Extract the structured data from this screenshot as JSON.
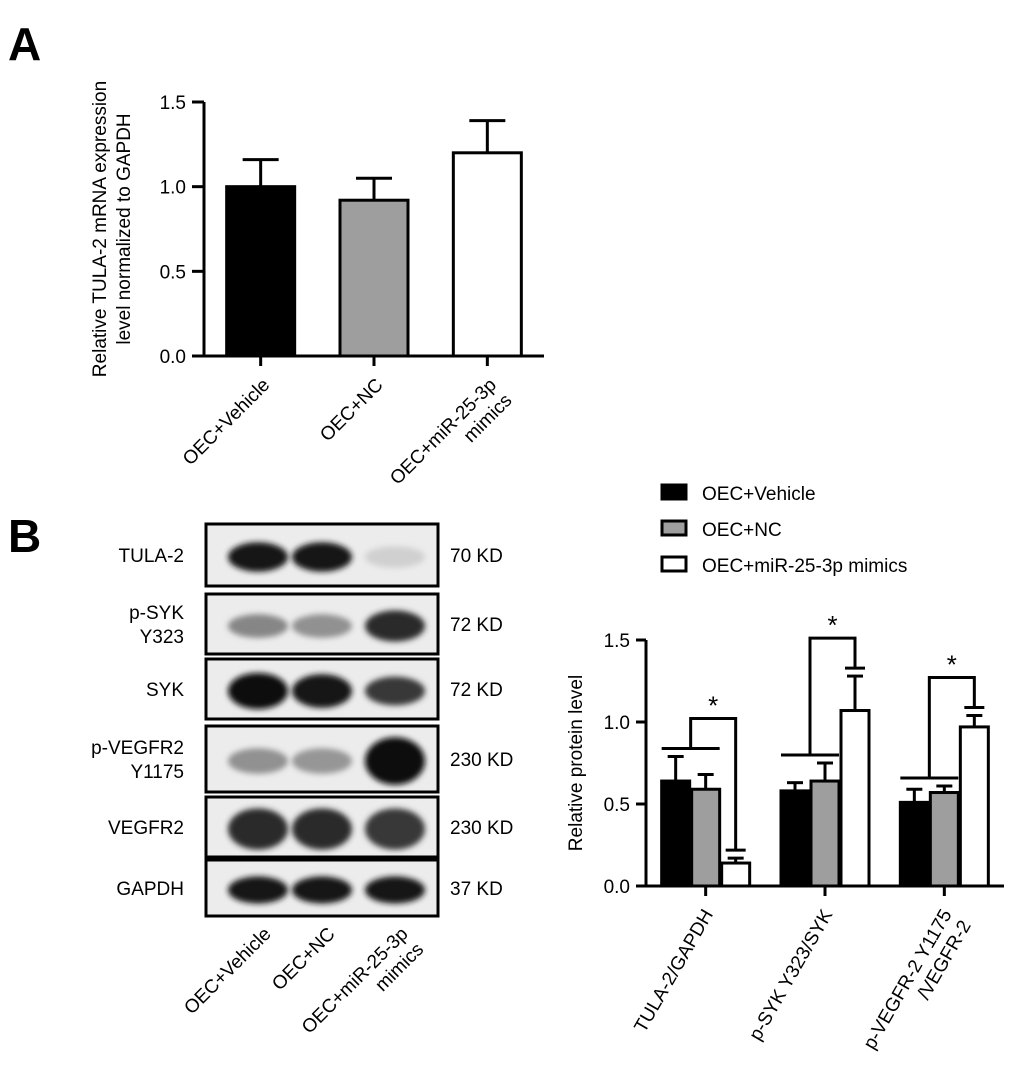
{
  "panels": {
    "a": "A",
    "b": "B"
  },
  "colors": {
    "vehicle": "#000000",
    "nc": "#9e9e9e",
    "mimics": "#ffffff",
    "stroke": "#000000"
  },
  "chart_data": [
    {
      "id": "A",
      "type": "bar",
      "ylabel_lines": [
        "Relative TULA-2 mRNA expression",
        "level normalized to GAPDH"
      ],
      "ylim": [
        0,
        1.5
      ],
      "yticks": [
        0.0,
        0.5,
        1.0,
        1.5
      ],
      "ytick_labels": [
        "0.0",
        "0.5",
        "1.0",
        "1.5"
      ],
      "categories": [
        {
          "lines": [
            "OEC+Vehicle"
          ]
        },
        {
          "lines": [
            "OEC+NC"
          ]
        },
        {
          "lines": [
            "OEC+miR-25-3p",
            "mimics"
          ]
        }
      ],
      "values": [
        1.0,
        0.92,
        1.2
      ],
      "errors": [
        0.16,
        0.13,
        0.19
      ]
    },
    {
      "id": "B-western",
      "type": "table",
      "bands": [
        {
          "label_lines": [
            "TULA-2"
          ],
          "size": "70 KD",
          "intensity": [
            0.95,
            0.95,
            0.12
          ],
          "thickness": [
            0.45,
            0.45,
            0.3
          ]
        },
        {
          "label_lines": [
            "p-SYK",
            "Y323"
          ],
          "size": "72 KD",
          "intensity": [
            0.45,
            0.4,
            0.85
          ],
          "thickness": [
            0.35,
            0.35,
            0.5
          ]
        },
        {
          "label_lines": [
            "SYK"
          ],
          "size": "72 KD",
          "intensity": [
            1.0,
            0.95,
            0.8
          ],
          "thickness": [
            0.6,
            0.55,
            0.45
          ]
        },
        {
          "label_lines": [
            "p-VEGFR2",
            "Y1175"
          ],
          "size": "230 KD",
          "intensity": [
            0.4,
            0.38,
            1.0
          ],
          "thickness": [
            0.35,
            0.35,
            0.75
          ]
        },
        {
          "label_lines": [
            "VEGFR2"
          ],
          "size": "230 KD",
          "intensity": [
            0.85,
            0.85,
            0.8
          ],
          "thickness": [
            0.7,
            0.7,
            0.7
          ]
        },
        {
          "label_lines": [
            "GAPDH"
          ],
          "size": "37 KD",
          "intensity": [
            0.95,
            0.95,
            0.95
          ],
          "thickness": [
            0.45,
            0.45,
            0.45
          ]
        }
      ],
      "lane_labels": [
        {
          "lines": [
            "OEC+Vehicle"
          ]
        },
        {
          "lines": [
            "OEC+NC"
          ]
        },
        {
          "lines": [
            "OEC+miR-25-3p",
            "mimics"
          ]
        }
      ]
    },
    {
      "id": "B",
      "type": "bar",
      "ylabel": "Relative protein level",
      "ylim": [
        0,
        1.5
      ],
      "yticks": [
        0.0,
        0.5,
        1.0,
        1.5
      ],
      "ytick_labels": [
        "0.0",
        "0.5",
        "1.0",
        "1.5"
      ],
      "legend": [
        "OEC+Vehicle",
        "OEC+NC",
        "OEC+miR-25-3p mimics"
      ],
      "legend_position": "top",
      "categories": [
        {
          "lines": [
            "TULA-2/GAPDH"
          ]
        },
        {
          "lines": [
            "p-SYK Y323/SYK"
          ]
        },
        {
          "lines": [
            "p-VEGFR-2 Y1175",
            "/VEGFR-2"
          ]
        }
      ],
      "series": [
        {
          "name": "OEC+Vehicle",
          "values": [
            0.64,
            0.58,
            0.51
          ],
          "errors": [
            0.15,
            0.05,
            0.08
          ]
        },
        {
          "name": "OEC+NC",
          "values": [
            0.59,
            0.64,
            0.57
          ],
          "errors": [
            0.09,
            0.11,
            0.04
          ]
        },
        {
          "name": "OEC+miR-25-3p mimics",
          "values": [
            0.14,
            1.07,
            0.97
          ],
          "errors": [
            0.03,
            0.21,
            0.07
          ]
        }
      ],
      "significance": [
        "*",
        "*",
        "*"
      ]
    }
  ]
}
